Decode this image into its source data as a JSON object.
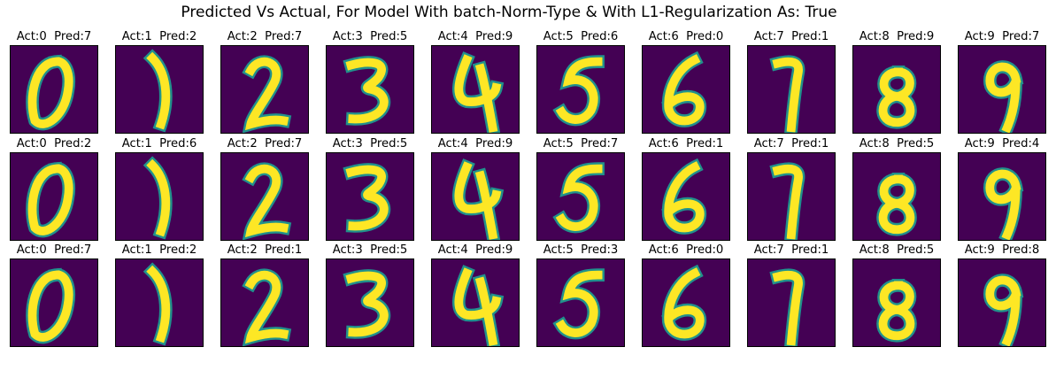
{
  "title": "Predicted Vs Actual, For Model With batch-Norm-Type & With L1-Regularization As: True",
  "colors": {
    "background": "#440154",
    "stroke": "#fde725",
    "edge": "#21918c"
  },
  "rows": [
    [
      {
        "label": "Act:0  Pred:7",
        "digit": "0"
      },
      {
        "label": "Act:1  Pred:2",
        "digit": "1"
      },
      {
        "label": "Act:2  Pred:7",
        "digit": "2"
      },
      {
        "label": "Act:3  Pred:5",
        "digit": "3"
      },
      {
        "label": "Act:4  Pred:9",
        "digit": "4"
      },
      {
        "label": "Act:5  Pred:6",
        "digit": "5"
      },
      {
        "label": "Act:6  Pred:0",
        "digit": "6"
      },
      {
        "label": "Act:7  Pred:1",
        "digit": "7"
      },
      {
        "label": "Act:8  Pred:9",
        "digit": "8"
      },
      {
        "label": "Act:9  Pred:7",
        "digit": "9"
      }
    ],
    [
      {
        "label": "Act:0  Pred:2",
        "digit": "0"
      },
      {
        "label": "Act:1  Pred:6",
        "digit": "1"
      },
      {
        "label": "Act:2  Pred:7",
        "digit": "2"
      },
      {
        "label": "Act:3  Pred:5",
        "digit": "3"
      },
      {
        "label": "Act:4  Pred:9",
        "digit": "4"
      },
      {
        "label": "Act:5  Pred:7",
        "digit": "5"
      },
      {
        "label": "Act:6  Pred:1",
        "digit": "6"
      },
      {
        "label": "Act:7  Pred:1",
        "digit": "7"
      },
      {
        "label": "Act:8  Pred:5",
        "digit": "8"
      },
      {
        "label": "Act:9  Pred:4",
        "digit": "9"
      }
    ],
    [
      {
        "label": "Act:0  Pred:7",
        "digit": "0"
      },
      {
        "label": "Act:1  Pred:2",
        "digit": "1"
      },
      {
        "label": "Act:2  Pred:1",
        "digit": "2"
      },
      {
        "label": "Act:3  Pred:5",
        "digit": "3"
      },
      {
        "label": "Act:4  Pred:9",
        "digit": "4"
      },
      {
        "label": "Act:5  Pred:3",
        "digit": "5"
      },
      {
        "label": "Act:6  Pred:0",
        "digit": "6"
      },
      {
        "label": "Act:7  Pred:1",
        "digit": "7"
      },
      {
        "label": "Act:8  Pred:5",
        "digit": "8"
      },
      {
        "label": "Act:9  Pred:8",
        "digit": "9"
      }
    ]
  ]
}
